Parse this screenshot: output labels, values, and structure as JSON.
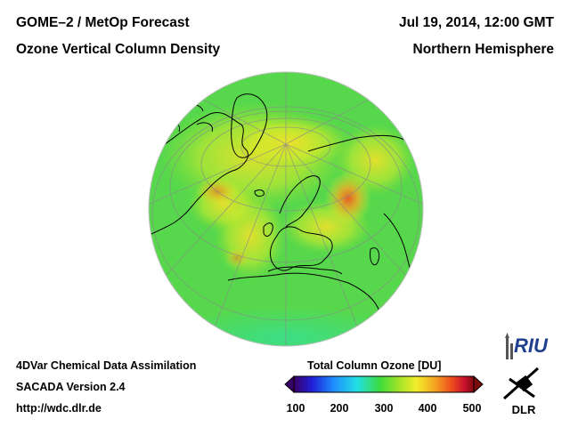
{
  "header": {
    "title": "GOME–2 / MetOp Forecast",
    "subtitle": "Ozone Vertical Column Density",
    "datetime": "Jul 19, 2014, 12:00 GMT",
    "region": "Northern Hemisphere"
  },
  "footer": {
    "model": "4DVar Chemical Data Assimilation",
    "version": "SACADA Version 2.4",
    "url": "http://wdc.dlr.de"
  },
  "colorbar": {
    "title": "Total Column Ozone [DU]",
    "ticks": [
      "100",
      "200",
      "300",
      "400",
      "500"
    ],
    "stops": [
      "#3b0066",
      "#1f1fd6",
      "#1f8cff",
      "#22e0e6",
      "#3ddc3a",
      "#9fe22a",
      "#f2ee2a",
      "#f5a623",
      "#ee4a1c",
      "#c8102e",
      "#7a0c0c"
    ]
  },
  "map": {
    "background_color": "#57d84c",
    "ozone_high_color": "#ee6a2a",
    "ozone_mid_color": "#f0e23a"
  },
  "logos": {
    "riu": "RIU",
    "dlr": "DLR"
  }
}
